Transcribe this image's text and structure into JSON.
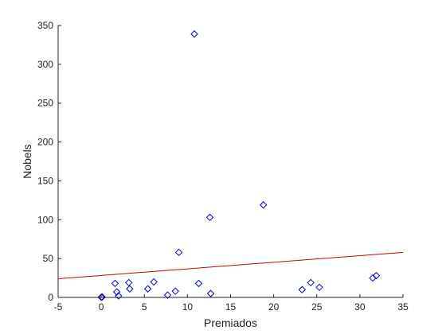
{
  "chart_data": {
    "type": "scatter",
    "xlabel": "Premiados",
    "ylabel": "Nobels",
    "xlim": [
      -5,
      35
    ],
    "ylim": [
      0,
      350
    ],
    "xticks": [
      -5,
      0,
      5,
      10,
      15,
      20,
      25,
      30,
      35
    ],
    "yticks": [
      0,
      50,
      100,
      150,
      200,
      250,
      300,
      350
    ],
    "grid": false,
    "legend": "none",
    "colors": {
      "marker": "#0000cc",
      "fit_line": "#cc0000",
      "axis": "#222222"
    },
    "series": [
      {
        "marker": "diamond",
        "points": [
          [
            0.0,
            0.2
          ],
          [
            0.1,
            0.5
          ],
          [
            1.6,
            18.0
          ],
          [
            1.8,
            7.0
          ],
          [
            2.0,
            2.0
          ],
          [
            3.2,
            19.0
          ],
          [
            3.3,
            11.0
          ],
          [
            5.4,
            11.0
          ],
          [
            6.1,
            20.0
          ],
          [
            7.7,
            3.0
          ],
          [
            8.6,
            8.0
          ],
          [
            9.0,
            58.0
          ],
          [
            10.8,
            339.0
          ],
          [
            11.3,
            18.0
          ],
          [
            12.6,
            103.0
          ],
          [
            12.7,
            5.0
          ],
          [
            18.8,
            119.0
          ],
          [
            23.3,
            10.0
          ],
          [
            24.3,
            19.0
          ],
          [
            25.3,
            13.0
          ],
          [
            31.5,
            25.0
          ],
          [
            31.9,
            28.0
          ]
        ]
      }
    ],
    "fit_line": {
      "x": [
        -5,
        35
      ],
      "y": [
        24,
        58
      ]
    }
  }
}
